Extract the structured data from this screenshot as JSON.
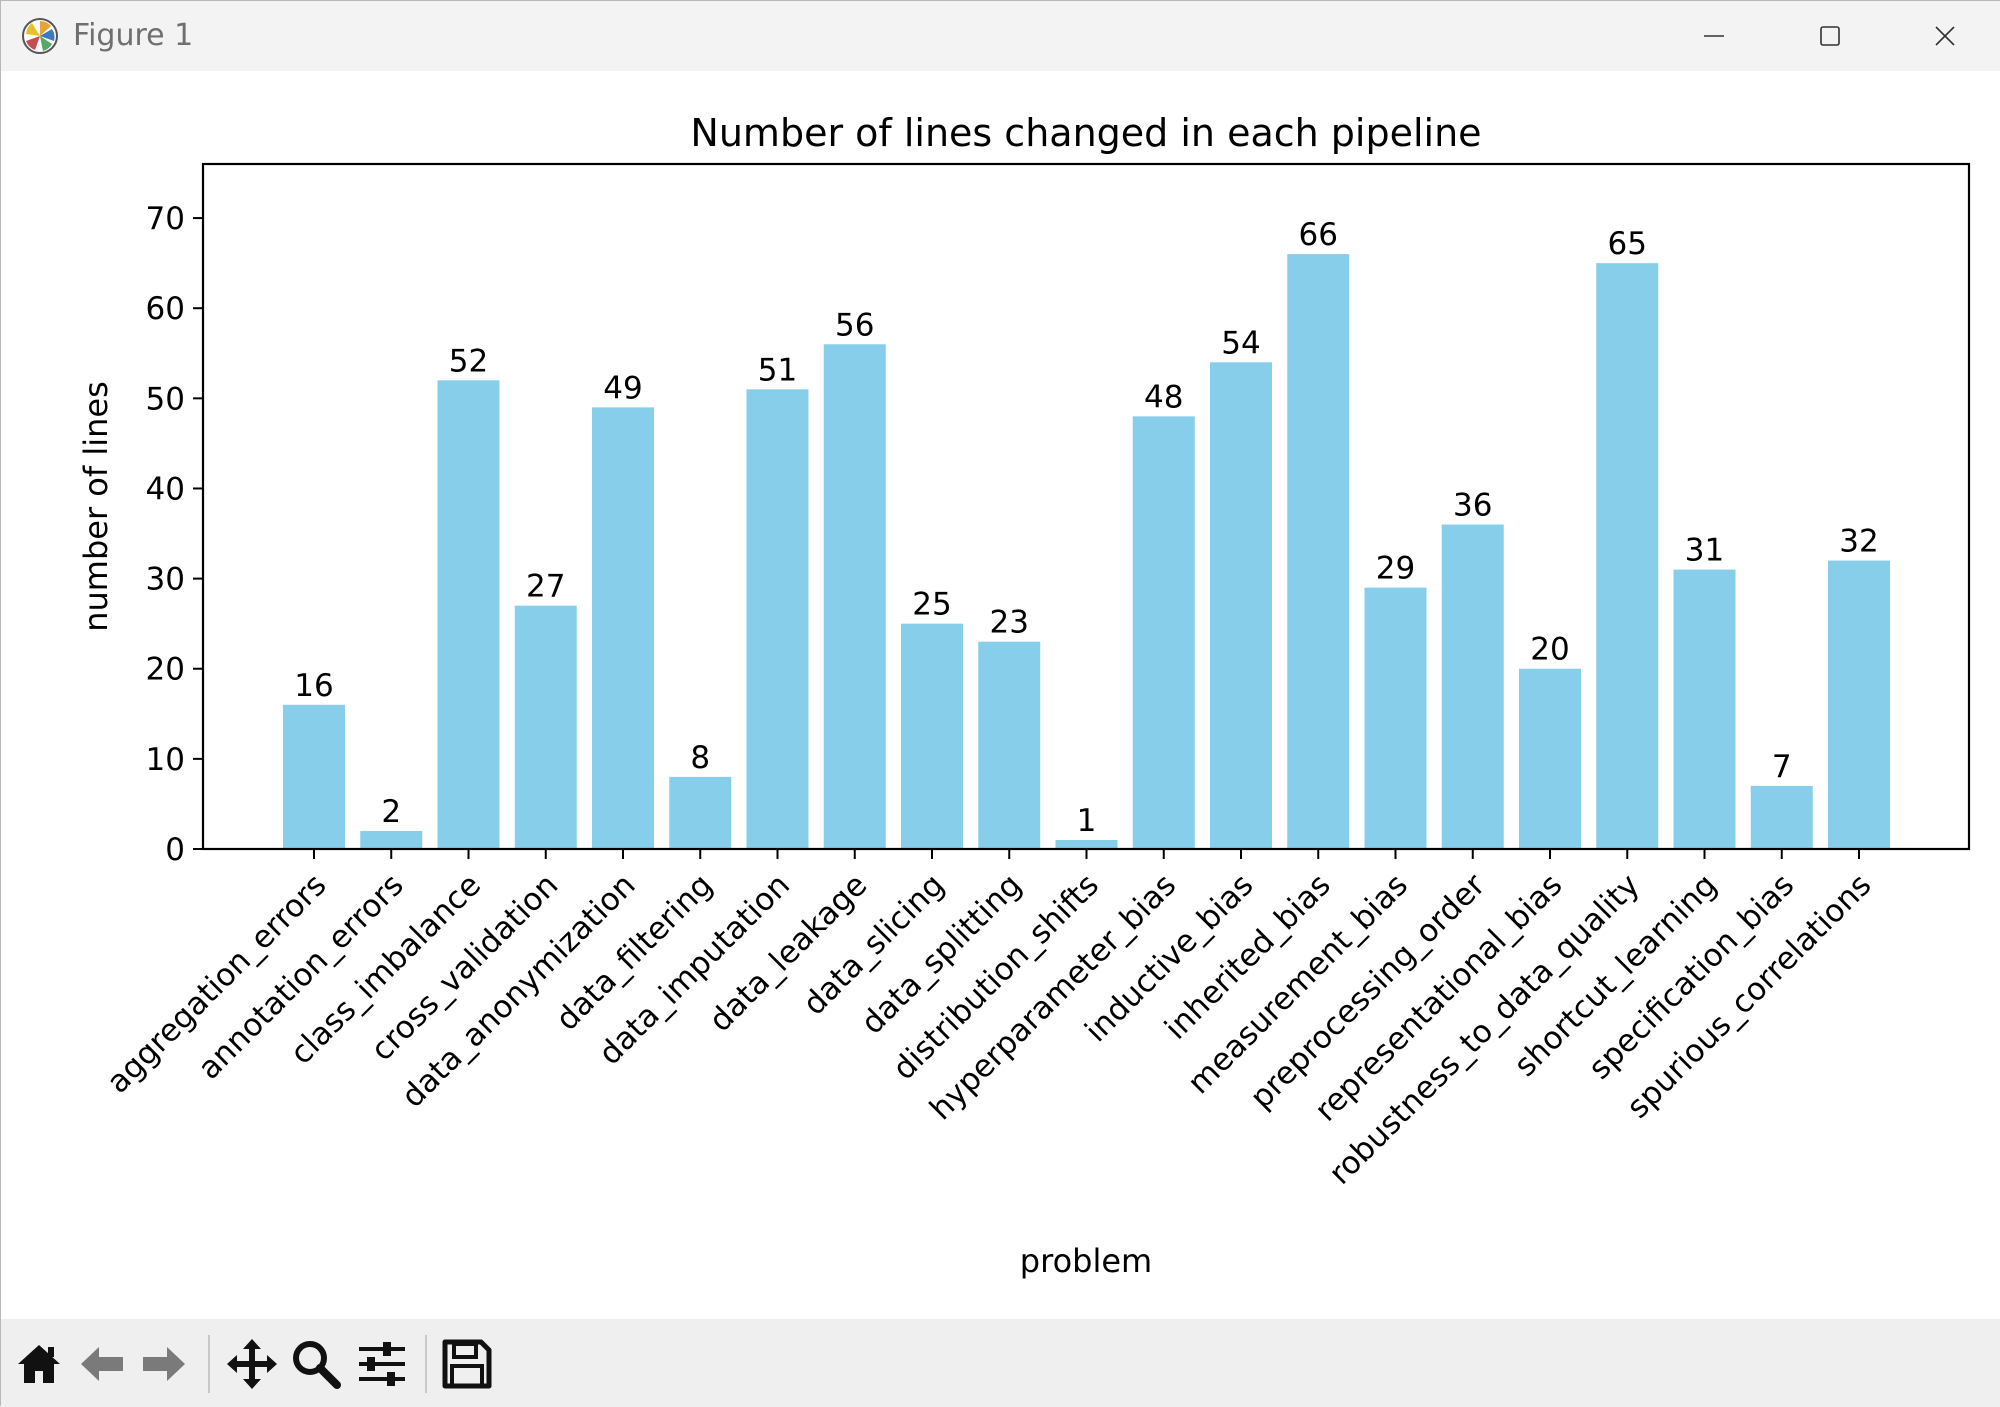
{
  "window": {
    "title": "Figure 1",
    "icons": [
      "matplotlib-logo-icon",
      "minimize-icon",
      "maximize-icon",
      "close-icon"
    ]
  },
  "toolbar": {
    "tools": [
      "home-icon",
      "back-icon",
      "forward-icon",
      "pan-icon",
      "zoom-icon",
      "configure-subplots-icon",
      "save-icon"
    ]
  },
  "colors": {
    "bar": "#87ceeb",
    "axes": "#000000",
    "titlebar": "#f3f3f3",
    "toolbar": "#efefef"
  },
  "chart_data": {
    "type": "bar",
    "title": "Number of lines changed in each pipeline",
    "xlabel": "problem",
    "ylabel": "number of lines",
    "ylim": [
      0,
      76
    ],
    "yticks": [
      0,
      10,
      20,
      30,
      40,
      50,
      60,
      70
    ],
    "categories": [
      "aggregation_errors",
      "annotation_errors",
      "class_imbalance",
      "cross_validation",
      "data_anonymization",
      "data_filtering",
      "data_imputation",
      "data_leakage",
      "data_slicing",
      "data_splitting",
      "distribution_shifts",
      "hyperparameter_bias",
      "inductive_bias",
      "inherited_bias",
      "measurement_bias",
      "preprocessing_order",
      "representational_bias",
      "robustness_to_data_quality",
      "shortcut_learning",
      "specification_bias",
      "spurious_correlations"
    ],
    "values": [
      16,
      2,
      52,
      27,
      49,
      8,
      51,
      56,
      25,
      23,
      1,
      48,
      54,
      66,
      29,
      36,
      20,
      65,
      31,
      7,
      32
    ],
    "data_labels": true,
    "grid": false,
    "x_tick_rotation": 45
  }
}
